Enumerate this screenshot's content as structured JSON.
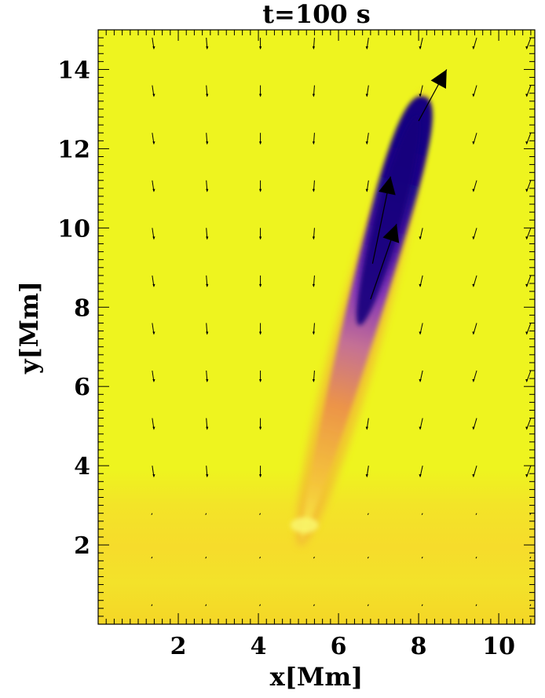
{
  "chart_data": {
    "type": "heatmap",
    "title": "t=100 s",
    "xlabel": "x[Mm]",
    "ylabel": "y[Mm]",
    "xlim": [
      0,
      10.9
    ],
    "ylim": [
      0,
      15
    ],
    "x_ticks": [
      2,
      4,
      6,
      8,
      10
    ],
    "y_ticks": [
      2,
      4,
      6,
      8,
      10,
      12,
      14
    ],
    "background_colors": {
      "upper": "#eef41f",
      "lower": "#f6d929"
    },
    "colormap": [
      "#12007f",
      "#3b0a93",
      "#7b2cbf",
      "#c0628a",
      "#f0a040",
      "#f6e030"
    ],
    "jet": {
      "description_points": [
        {
          "x": 5.1,
          "y": 2.2,
          "density": 0.15
        },
        {
          "x": 5.6,
          "y": 4.0,
          "density": 0.35
        },
        {
          "x": 6.2,
          "y": 6.0,
          "density": 0.55
        },
        {
          "x": 6.9,
          "y": 8.0,
          "density": 0.75
        },
        {
          "x": 7.5,
          "y": 10.0,
          "density": 0.9
        },
        {
          "x": 8.1,
          "y": 13.2,
          "density": 1.0
        }
      ]
    },
    "velocity_field": {
      "columns_x": [
        1.35,
        2.7,
        4.05,
        5.4,
        6.75,
        8.1,
        9.45,
        10.8
      ],
      "rows_y": [
        14.8,
        13.6,
        12.4,
        11.2,
        10.0,
        8.8,
        7.6,
        6.4,
        5.2,
        4.0,
        2.8,
        1.7,
        0.5
      ],
      "large_arrows": [
        {
          "x0": 8.0,
          "y0": 12.7,
          "x1": 8.7,
          "y1": 14.0
        },
        {
          "x0": 6.85,
          "y0": 9.1,
          "x1": 7.3,
          "y1": 11.3
        },
        {
          "x0": 6.8,
          "y0": 8.2,
          "x1": 7.45,
          "y1": 10.1
        }
      ]
    }
  }
}
